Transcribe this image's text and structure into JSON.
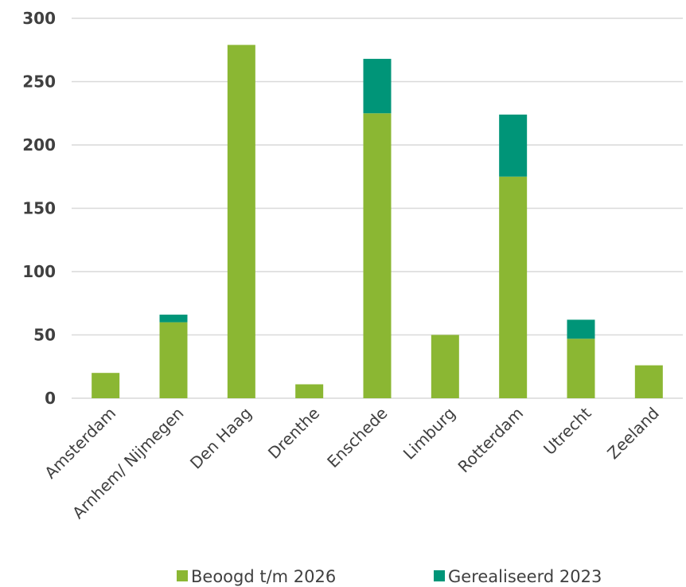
{
  "chart_data": {
    "type": "bar",
    "stacked": true,
    "title": "",
    "xlabel": "",
    "ylabel": "",
    "categories": [
      "Amsterdam",
      "Arnhem/ Nijmegen",
      "Den Haag",
      "Drenthe",
      "Enschede",
      "Limburg",
      "Rotterdam",
      "Utrecht",
      "Zeeland"
    ],
    "series": [
      {
        "name": "Beoogd t/m 2026",
        "color": "#8bb733",
        "values": [
          20,
          60,
          279,
          11,
          225,
          50,
          175,
          47,
          26
        ]
      },
      {
        "name": "Gerealiseerd 2023",
        "color": "#009578",
        "values": [
          0,
          6,
          0,
          0,
          43,
          0,
          49,
          15,
          0
        ]
      }
    ],
    "ylim": [
      0,
      300
    ],
    "yticks": [
      0,
      50,
      100,
      150,
      200,
      250,
      300
    ],
    "grid": true,
    "legend_position": "bottom"
  }
}
